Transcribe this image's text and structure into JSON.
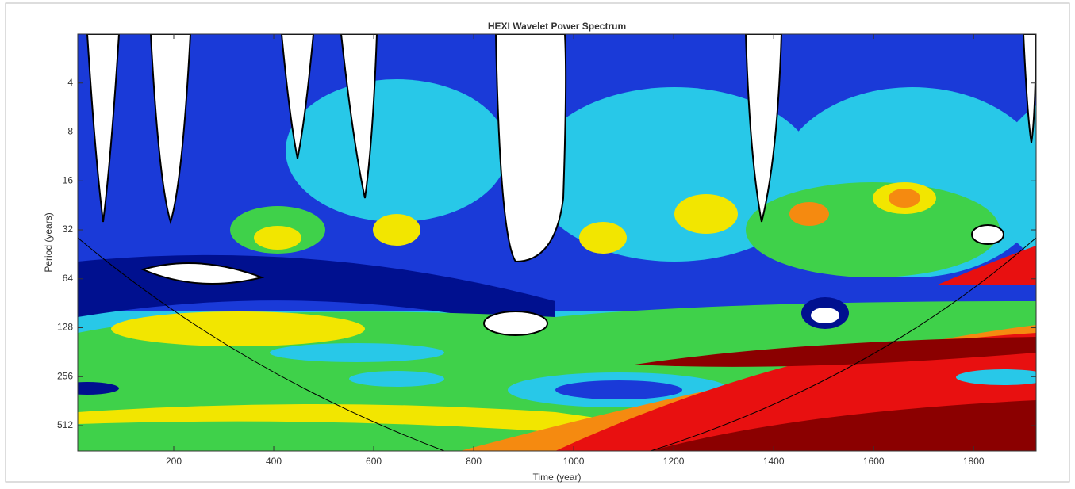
{
  "chart_data": {
    "type": "contour",
    "title": "HEXI Wavelet Power Spectrum",
    "xlabel": "Time (year)",
    "ylabel": "Period (years)",
    "xlim": [
      8,
      1925
    ],
    "xticks": [
      200,
      400,
      600,
      800,
      1000,
      1200,
      1400,
      1600,
      1800
    ],
    "ylim": [
      2,
      733
    ],
    "yticks": [
      4,
      8,
      16,
      32,
      64,
      128,
      256,
      512
    ],
    "yscale": "log2",
    "yreversed": true
  }
}
